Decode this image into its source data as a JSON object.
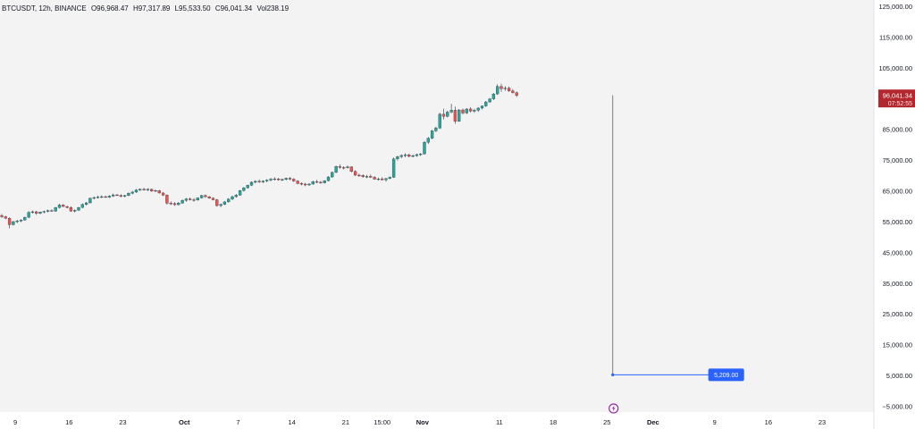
{
  "legend": {
    "symbol": "BTCUSDT, 12h, BINANCE",
    "open": "O96,968.47",
    "high": "H97,317.89",
    "low": "L95,533.50",
    "close": "C96,041.34",
    "volume": "Vol238.19"
  },
  "price_badge": {
    "price": "96,041.34",
    "countdown": "07:52:55"
  },
  "measure_label": "5,209.00",
  "colors": {
    "up": "#26a69a",
    "down": "#ef5350",
    "badge": "#b2282e",
    "measure": "#2962ff",
    "lightning": "#9c27b0"
  },
  "chart_data": {
    "type": "candlestick",
    "symbol": "BTCUSDT",
    "interval": "12h",
    "exchange": "BINANCE",
    "ylim": [
      -5000,
      125000
    ],
    "yticks": [
      -5000,
      5000,
      15000,
      25000,
      35000,
      45000,
      55000,
      65000,
      75000,
      85000,
      95000,
      105000,
      115000,
      125000
    ],
    "ytick_labels": [
      "−5,000.00",
      "5,000.00",
      "15,000.00",
      "25,000.00",
      "35,000.00",
      "45,000.00",
      "55,000.00",
      "65,000.00",
      "75,000.00",
      "85,000.00",
      "95,000.00",
      "105,000.00",
      "115,000.00",
      "125,000.00"
    ],
    "xticks": [
      {
        "label": "9",
        "bar": 3.5
      },
      {
        "label": "16",
        "bar": 17.5
      },
      {
        "label": "23",
        "bar": 31.5
      },
      {
        "label": "Oct",
        "bar": 47.5,
        "bold": true
      },
      {
        "label": "7",
        "bar": 61.5
      },
      {
        "label": "14",
        "bar": 75.5
      },
      {
        "label": "21",
        "bar": 89.5
      },
      {
        "label": "15:00",
        "bar": 99
      },
      {
        "label": "Nov",
        "bar": 109.5,
        "bold": true
      },
      {
        "label": "11",
        "bar": 129.5
      },
      {
        "label": "18",
        "bar": 143.5
      },
      {
        "label": "25",
        "bar": 157.5
      },
      {
        "label": "Dec",
        "bar": 169.5,
        "bold": true
      },
      {
        "label": "9",
        "bar": 185.5
      },
      {
        "label": "16",
        "bar": 199.5
      },
      {
        "label": "23",
        "bar": 213.5
      }
    ],
    "ohlc": [
      [
        57000,
        57500,
        56200,
        56600
      ],
      [
        56600,
        56900,
        55800,
        56100
      ],
      [
        56100,
        56400,
        52800,
        54000
      ],
      [
        54000,
        55200,
        53700,
        55000
      ],
      [
        55000,
        55600,
        54500,
        55200
      ],
      [
        55200,
        55800,
        54800,
        55500
      ],
      [
        55500,
        56600,
        55300,
        56400
      ],
      [
        56400,
        58400,
        56200,
        58000
      ],
      [
        58000,
        58600,
        57600,
        58200
      ],
      [
        58200,
        58500,
        57200,
        57700
      ],
      [
        57700,
        58300,
        57400,
        58100
      ],
      [
        58100,
        58600,
        57700,
        58300
      ],
      [
        58300,
        58900,
        58000,
        58600
      ],
      [
        58600,
        59000,
        58200,
        58400
      ],
      [
        58400,
        59800,
        58200,
        59600
      ],
      [
        59600,
        60800,
        59300,
        60400
      ],
      [
        60400,
        60700,
        59800,
        59900
      ],
      [
        59900,
        60200,
        59300,
        59600
      ],
      [
        59600,
        60000,
        58200,
        58400
      ],
      [
        58400,
        59000,
        58000,
        58700
      ],
      [
        58700,
        59800,
        58500,
        59600
      ],
      [
        59600,
        60900,
        59400,
        60600
      ],
      [
        60600,
        61400,
        60200,
        61100
      ],
      [
        61100,
        62800,
        60900,
        62600
      ],
      [
        62600,
        63200,
        62200,
        62800
      ],
      [
        62800,
        63500,
        62500,
        63000
      ],
      [
        63000,
        63600,
        62600,
        63100
      ],
      [
        63100,
        63500,
        62700,
        62900
      ],
      [
        62900,
        63600,
        62700,
        63300
      ],
      [
        63300,
        64100,
        63000,
        63700
      ],
      [
        63700,
        64000,
        63300,
        63500
      ],
      [
        63500,
        63900,
        62900,
        63200
      ],
      [
        63200,
        63700,
        62900,
        63500
      ],
      [
        63500,
        64500,
        63300,
        64200
      ],
      [
        64200,
        65000,
        63900,
        64600
      ],
      [
        64600,
        65600,
        64300,
        65300
      ],
      [
        65300,
        65800,
        64900,
        65500
      ],
      [
        65500,
        66000,
        65100,
        65300
      ],
      [
        65300,
        65800,
        64900,
        65500
      ],
      [
        65500,
        65700,
        64700,
        64900
      ],
      [
        64900,
        65400,
        64600,
        65100
      ],
      [
        65100,
        65300,
        64100,
        64300
      ],
      [
        64300,
        64600,
        63300,
        63600
      ],
      [
        63600,
        63900,
        60500,
        61000
      ],
      [
        61000,
        61600,
        60400,
        60900
      ],
      [
        60900,
        61300,
        60100,
        60500
      ],
      [
        60500,
        61400,
        60300,
        61000
      ],
      [
        61000,
        62200,
        60800,
        61900
      ],
      [
        61900,
        62700,
        61500,
        62400
      ],
      [
        62400,
        62800,
        61900,
        62100
      ],
      [
        62100,
        62600,
        61500,
        62000
      ],
      [
        62000,
        62900,
        61800,
        62700
      ],
      [
        62700,
        63700,
        62500,
        63500
      ],
      [
        63500,
        63800,
        62800,
        63100
      ],
      [
        63100,
        63300,
        62400,
        62600
      ],
      [
        62600,
        62900,
        61900,
        62100
      ],
      [
        62100,
        62400,
        59900,
        60200
      ],
      [
        60200,
        60900,
        59700,
        60600
      ],
      [
        60600,
        61700,
        60400,
        61400
      ],
      [
        61400,
        62600,
        61200,
        62300
      ],
      [
        62300,
        63500,
        62000,
        63100
      ],
      [
        63100,
        64000,
        62800,
        63600
      ],
      [
        63600,
        65300,
        63400,
        65100
      ],
      [
        65100,
        66300,
        64800,
        66000
      ],
      [
        66000,
        67000,
        65700,
        66800
      ],
      [
        66800,
        68100,
        66500,
        67800
      ],
      [
        67800,
        68400,
        67400,
        68100
      ],
      [
        68100,
        68700,
        67600,
        67900
      ],
      [
        67900,
        68400,
        67500,
        68200
      ],
      [
        68200,
        68800,
        67800,
        68500
      ],
      [
        68500,
        69200,
        68100,
        68800
      ],
      [
        68800,
        69400,
        68400,
        68900
      ],
      [
        68900,
        69200,
        68300,
        68600
      ],
      [
        68600,
        69000,
        68200,
        68700
      ],
      [
        68700,
        69300,
        68400,
        69100
      ],
      [
        69100,
        69500,
        68500,
        68800
      ],
      [
        68800,
        69100,
        67900,
        68200
      ],
      [
        68200,
        68500,
        67100,
        67400
      ],
      [
        67400,
        67800,
        66800,
        67200
      ],
      [
        67200,
        67600,
        66500,
        66900
      ],
      [
        66900,
        67500,
        66600,
        67200
      ],
      [
        67200,
        68300,
        67000,
        68000
      ],
      [
        68000,
        68600,
        67500,
        67800
      ],
      [
        67800,
        68200,
        67300,
        67600
      ],
      [
        67600,
        68500,
        67400,
        68300
      ],
      [
        68300,
        69800,
        68100,
        69500
      ],
      [
        69500,
        71300,
        69300,
        71000
      ],
      [
        71000,
        73200,
        70800,
        72900
      ],
      [
        72900,
        73600,
        72200,
        72600
      ],
      [
        72600,
        73000,
        72000,
        72500
      ],
      [
        72500,
        73200,
        72300,
        72800
      ],
      [
        72800,
        73000,
        71000,
        71300
      ],
      [
        71300,
        71700,
        69800,
        70100
      ],
      [
        70100,
        70600,
        69500,
        70000
      ],
      [
        70000,
        70400,
        69300,
        69600
      ],
      [
        69600,
        70200,
        69100,
        69700
      ],
      [
        69700,
        70300,
        69200,
        69400
      ],
      [
        69400,
        69800,
        68600,
        68800
      ],
      [
        68800,
        69300,
        68300,
        68900
      ],
      [
        68900,
        69400,
        68400,
        68600
      ],
      [
        68600,
        69200,
        68000,
        69000
      ],
      [
        69000,
        69700,
        68800,
        69400
      ],
      [
        69400,
        75800,
        69200,
        75400
      ],
      [
        75400,
        76400,
        74800,
        76100
      ],
      [
        76100,
        76900,
        75600,
        76500
      ],
      [
        76500,
        77200,
        75900,
        76700
      ],
      [
        76700,
        77100,
        75900,
        76200
      ],
      [
        76200,
        76800,
        75900,
        76400
      ],
      [
        76400,
        77100,
        76100,
        76800
      ],
      [
        76800,
        77300,
        76300,
        77000
      ],
      [
        77000,
        81200,
        76800,
        80800
      ],
      [
        80800,
        82500,
        80300,
        82100
      ],
      [
        82100,
        84800,
        81800,
        84500
      ],
      [
        84500,
        85900,
        84100,
        85400
      ],
      [
        85400,
        90400,
        85100,
        89900
      ],
      [
        89900,
        91700,
        88200,
        89200
      ],
      [
        89200,
        91100,
        88900,
        90600
      ],
      [
        90600,
        93300,
        90200,
        91200
      ],
      [
        91200,
        92400,
        86800,
        87600
      ],
      [
        87600,
        91600,
        87400,
        91300
      ],
      [
        91300,
        91700,
        89800,
        90300
      ],
      [
        90300,
        91900,
        90000,
        91600
      ],
      [
        91600,
        92200,
        90500,
        90900
      ],
      [
        90900,
        91700,
        90400,
        91200
      ],
      [
        91200,
        92200,
        90700,
        91900
      ],
      [
        91900,
        92800,
        91500,
        92600
      ],
      [
        92600,
        94200,
        92300,
        93900
      ],
      [
        93900,
        95200,
        93600,
        94900
      ],
      [
        94900,
        96800,
        94500,
        96500
      ],
      [
        96500,
        99600,
        96200,
        98900
      ],
      [
        98900,
        99800,
        97200,
        98200
      ],
      [
        98200,
        99000,
        97500,
        98400
      ],
      [
        98400,
        98900,
        97200,
        97500
      ],
      [
        97500,
        98100,
        96600,
        96900
      ],
      [
        96900,
        97300,
        95500,
        96000
      ]
    ],
    "last_price": 96041.34,
    "measure": {
      "from_bar": 159,
      "to_bar": 184,
      "top_price": 96041.34,
      "bottom_price": 5209.0
    }
  }
}
